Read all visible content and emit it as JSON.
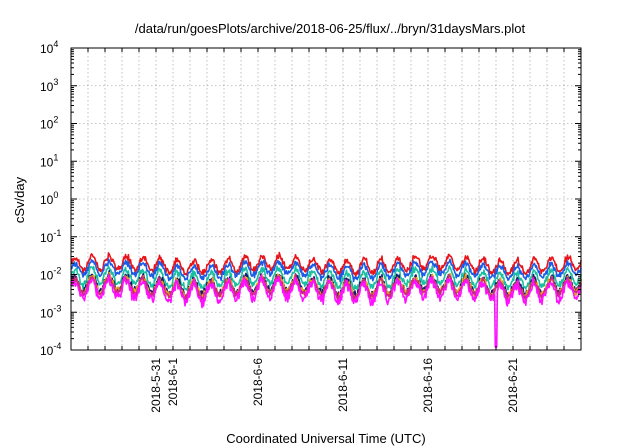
{
  "chart_data": {
    "type": "line",
    "title": "/data/run/goesPlots/archive/2018-06-25/flux/../bryn/31daysMars.plot",
    "xlabel": "Coordinated Universal Time (UTC)",
    "ylabel": "cSv/day",
    "yscale": "log",
    "ylim": [
      0.0001,
      10000
    ],
    "y_ticks": [
      {
        "base": "10",
        "exp": "-4",
        "value": 0.0001
      },
      {
        "base": "10",
        "exp": "-3",
        "value": 0.001
      },
      {
        "base": "10",
        "exp": "-2",
        "value": 0.01
      },
      {
        "base": "10",
        "exp": "-1",
        "value": 0.1
      },
      {
        "base": "10",
        "exp": "0",
        "value": 1
      },
      {
        "base": "10",
        "exp": "1",
        "value": 10
      },
      {
        "base": "10",
        "exp": "2",
        "value": 100
      },
      {
        "base": "10",
        "exp": "3",
        "value": 1000
      },
      {
        "base": "10",
        "exp": "4",
        "value": 10000
      }
    ],
    "xlim": [
      "2018-05-26",
      "2018-06-25"
    ],
    "x_ticks": [
      {
        "label": "2018-5-31",
        "date": "2018-05-31"
      },
      {
        "label": "2018-6-1",
        "date": "2018-06-01"
      },
      {
        "label": "2018-6-6",
        "date": "2018-06-06"
      },
      {
        "label": "2018-6-11",
        "date": "2018-06-11"
      },
      {
        "label": "2018-6-16",
        "date": "2018-06-16"
      },
      {
        "label": "2018-6-21",
        "date": "2018-06-21"
      }
    ],
    "grid": true,
    "series": [
      {
        "color": "#e8141a",
        "base": 0.018,
        "amp": 0.18,
        "noise": 0.05,
        "phase": 0.0
      },
      {
        "color": "#1a5ce8",
        "base": 0.013,
        "amp": 0.17,
        "noise": 0.05,
        "phase": 0.1
      },
      {
        "color": "#18c0a0",
        "base": 0.008,
        "amp": 0.2,
        "noise": 0.06,
        "phase": 0.2
      },
      {
        "color": "#1a1a70",
        "base": 0.0052,
        "amp": 0.2,
        "noise": 0.07,
        "phase": 0.25
      },
      {
        "color": "#e8a018",
        "base": 0.0048,
        "amp": 0.2,
        "noise": 0.07,
        "phase": 0.3
      },
      {
        "color": "#cc2a80",
        "base": 0.0045,
        "amp": 0.2,
        "noise": 0.07,
        "phase": 0.35
      },
      {
        "color": "#ff10ff",
        "base": 0.0036,
        "amp": 0.24,
        "noise": 0.1,
        "phase": 0.4,
        "dip": {
          "date": "2018-06-20",
          "value": 0.00012
        }
      }
    ]
  }
}
